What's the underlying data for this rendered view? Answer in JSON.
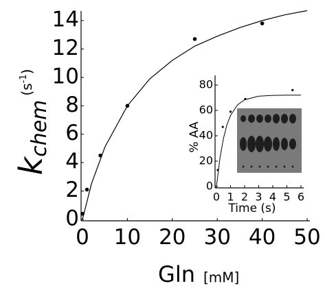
{
  "chart_data": [
    {
      "type": "scatter",
      "xlabel": [
        "Gln",
        "[mM]"
      ],
      "ylabel": [
        "k",
        "chem",
        "(s",
        "-1",
        ")"
      ],
      "x": [
        0,
        1,
        4,
        10,
        25,
        40
      ],
      "values": [
        0.4,
        2.1,
        4.5,
        8,
        12.7,
        13.8
      ],
      "fit": {
        "x": [
          0,
          2,
          5,
          10,
          15,
          20,
          25,
          30,
          35,
          40,
          45,
          50
        ],
        "values": [
          0,
          2.5,
          5.1,
          8.0,
          9.9,
          11.2,
          12.2,
          12.9,
          13.5,
          14.0,
          14.4,
          14.7
        ]
      },
      "color": "#000000",
      "xlim": [
        0,
        50
      ],
      "xticks": [
        0,
        10,
        20,
        30,
        40,
        50
      ],
      "ylim": [
        0,
        14
      ],
      "yticks": [
        0,
        2,
        4,
        6,
        8,
        10,
        12,
        14
      ]
    },
    {
      "type": "scatter",
      "xlabel": [
        "Time (s)"
      ],
      "ylabel": [
        "% AA"
      ],
      "x": [
        0.1,
        0.45,
        1.0,
        2.05,
        5.4
      ],
      "values": [
        13,
        47,
        59,
        69,
        76
      ],
      "fit": {
        "x": [
          0,
          0.25,
          0.5,
          0.75,
          1,
          1.5,
          2,
          3,
          4,
          5,
          6
        ],
        "values": [
          0,
          22.4,
          38.0,
          48.8,
          56.0,
          64.4,
          68.4,
          71.2,
          71.8,
          72,
          72
        ]
      },
      "color": "#000000",
      "xlim": [
        0,
        6
      ],
      "xticks": [
        0,
        1,
        2,
        3,
        4,
        5,
        6
      ],
      "ylim": [
        0,
        80
      ],
      "yticks": [
        0,
        20,
        40,
        60,
        80
      ]
    }
  ]
}
